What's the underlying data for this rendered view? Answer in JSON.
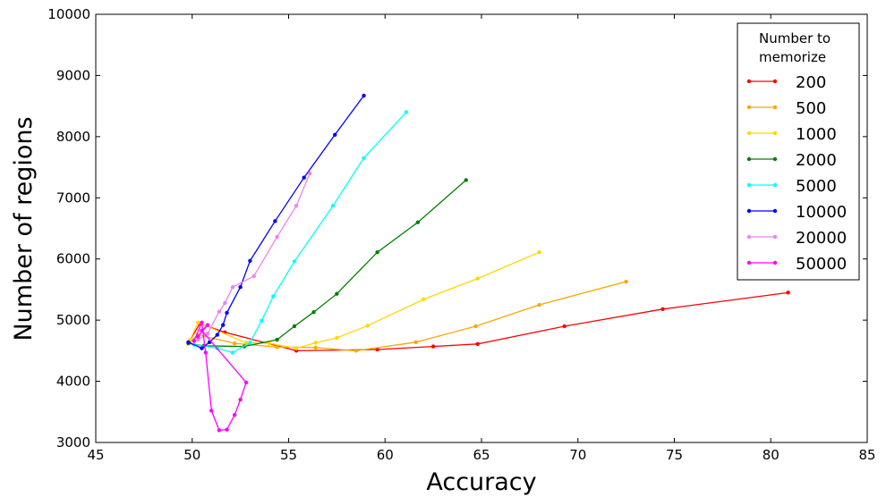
{
  "chart_data": {
    "type": "line",
    "xlabel": "Accuracy",
    "ylabel": "Number of regions",
    "xlim": [
      45,
      85
    ],
    "ylim": [
      3000,
      10000
    ],
    "x_ticks": [
      45,
      50,
      55,
      60,
      65,
      70,
      75,
      80,
      85
    ],
    "y_ticks": [
      3000,
      4000,
      5000,
      6000,
      7000,
      8000,
      9000,
      10000
    ],
    "grid": false,
    "legend": {
      "title": "Number to\nmemorize",
      "placement": "top-right"
    },
    "series": [
      {
        "name": "200",
        "color": "#ff0000",
        "x": [
          49.9,
          50.4,
          51.7,
          55.4,
          59.6,
          62.5,
          64.8,
          69.3,
          74.4,
          80.9
        ],
        "y": [
          4680,
          4940,
          4800,
          4500,
          4520,
          4570,
          4610,
          4900,
          5180,
          5450
        ]
      },
      {
        "name": "500",
        "color": "#ffa500",
        "x": [
          49.9,
          50.3,
          52.2,
          54.4,
          56.4,
          58.5,
          61.6,
          64.7,
          68.0,
          72.5
        ],
        "y": [
          4650,
          4760,
          4620,
          4560,
          4550,
          4500,
          4640,
          4900,
          5250,
          5630
        ]
      },
      {
        "name": "1000",
        "color": "#ffd700",
        "x": [
          49.9,
          50.3,
          52.8,
          54.0,
          55.4,
          56.4,
          57.5,
          59.1,
          62.0,
          64.8,
          68.0
        ],
        "y": [
          4680,
          4960,
          4630,
          4620,
          4540,
          4630,
          4710,
          4910,
          5340,
          5680,
          6110
        ]
      },
      {
        "name": "2000",
        "color": "#008000",
        "x": [
          49.8,
          50.6,
          52.7,
          54.4,
          55.3,
          56.3,
          57.5,
          59.6,
          61.7,
          64.2
        ],
        "y": [
          4620,
          4580,
          4570,
          4680,
          4900,
          5130,
          5430,
          6110,
          6600,
          7290
        ]
      },
      {
        "name": "5000",
        "color": "#00ffff",
        "x": [
          50.1,
          51.3,
          52.1,
          53.0,
          53.6,
          54.2,
          55.3,
          57.3,
          58.9,
          61.1
        ],
        "y": [
          4600,
          4540,
          4470,
          4630,
          4990,
          5390,
          5960,
          6870,
          7650,
          8400
        ]
      },
      {
        "name": "10000",
        "color": "#0000ff",
        "x": [
          49.8,
          50.5,
          50.9,
          51.3,
          51.6,
          51.8,
          52.5,
          53.0,
          54.3,
          55.8,
          57.4,
          58.9
        ],
        "y": [
          4640,
          4540,
          4640,
          4760,
          4920,
          5120,
          5540,
          5970,
          6620,
          7330,
          8030,
          8670
        ]
      },
      {
        "name": "20000",
        "color": "#ee82ee",
        "x": [
          50.3,
          50.8,
          51.4,
          51.7,
          52.1,
          53.2,
          54.4,
          55.4,
          56.1
        ],
        "y": [
          4680,
          4780,
          5140,
          5280,
          5540,
          5720,
          6360,
          6870,
          7400
        ]
      },
      {
        "name": "50000",
        "color": "#ff00ff",
        "x": [
          50.1,
          50.5,
          50.7,
          51.0,
          51.4,
          51.8,
          52.2,
          52.5,
          52.8,
          50.5,
          50.8,
          50.3
        ],
        "y": [
          4660,
          4960,
          4470,
          3520,
          3200,
          3210,
          3450,
          3700,
          3980,
          4830,
          4920,
          4730
        ]
      }
    ]
  }
}
